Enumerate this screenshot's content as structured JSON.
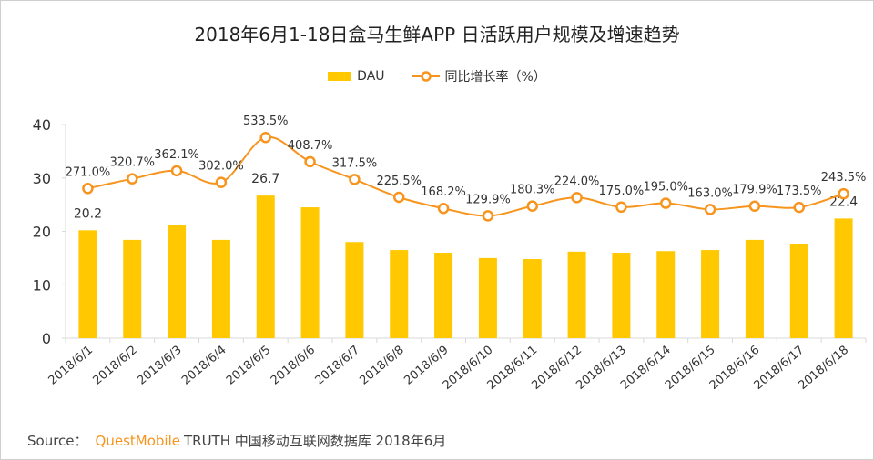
{
  "colors": {
    "bar": "#FFC800",
    "line": "#F7941D",
    "axis": "#d9d9d9",
    "text": "#333333"
  },
  "chart_data": {
    "type": "bar+line",
    "title": "2018年6月1-18日盒马生鲜APP 日活跃用户规模及增速趋势",
    "categories": [
      "2018/6/1",
      "2018/6/2",
      "2018/6/3",
      "2018/6/4",
      "2018/6/5",
      "2018/6/6",
      "2018/6/7",
      "2018/6/8",
      "2018/6/9",
      "2018/6/10",
      "2018/6/11",
      "2018/6/12",
      "2018/6/13",
      "2018/6/14",
      "2018/6/15",
      "2018/6/16",
      "2018/6/17",
      "2018/6/18"
    ],
    "series": [
      {
        "name": "DAU",
        "type": "bar",
        "axis": "left",
        "values": [
          20.2,
          18.4,
          21.1,
          18.4,
          26.7,
          24.5,
          18.0,
          16.5,
          16.0,
          15.0,
          14.8,
          16.2,
          16.0,
          16.3,
          16.5,
          18.4,
          17.7,
          22.4
        ],
        "labeled": [
          true,
          false,
          false,
          false,
          true,
          false,
          false,
          false,
          false,
          false,
          false,
          false,
          false,
          false,
          false,
          false,
          false,
          true
        ]
      },
      {
        "name": "同比增长率（%）",
        "type": "line",
        "axis": "right-hidden",
        "values": [
          271.0,
          320.7,
          362.1,
          302.0,
          533.5,
          408.7,
          317.5,
          225.5,
          168.2,
          129.9,
          180.3,
          224.0,
          175.0,
          195.0,
          163.0,
          179.9,
          173.5,
          243.5
        ],
        "labels": [
          "271.0%",
          "320.7%",
          "362.1%",
          "302.0%",
          "533.5%",
          "408.7%",
          "317.5%",
          "225.5%",
          "168.2%",
          "129.9%",
          "180.3%",
          "224.0%",
          "175.0%",
          "195.0%",
          "163.0%",
          "179.9%",
          "173.5%",
          "243.5%"
        ]
      }
    ],
    "ylim": [
      0,
      40
    ],
    "yticks": [
      "0",
      "10",
      "20",
      "30",
      "40"
    ],
    "y2lim": [
      -500,
      600
    ],
    "grid": false,
    "legend": "top-center"
  },
  "legend": {
    "bar": "DAU",
    "line": "同比增长率（%）"
  },
  "footer": {
    "prefix": "Source：",
    "brand": "QuestMobile",
    "rest": "TRUTH 中国移动互联网数据库 2018年6月"
  }
}
